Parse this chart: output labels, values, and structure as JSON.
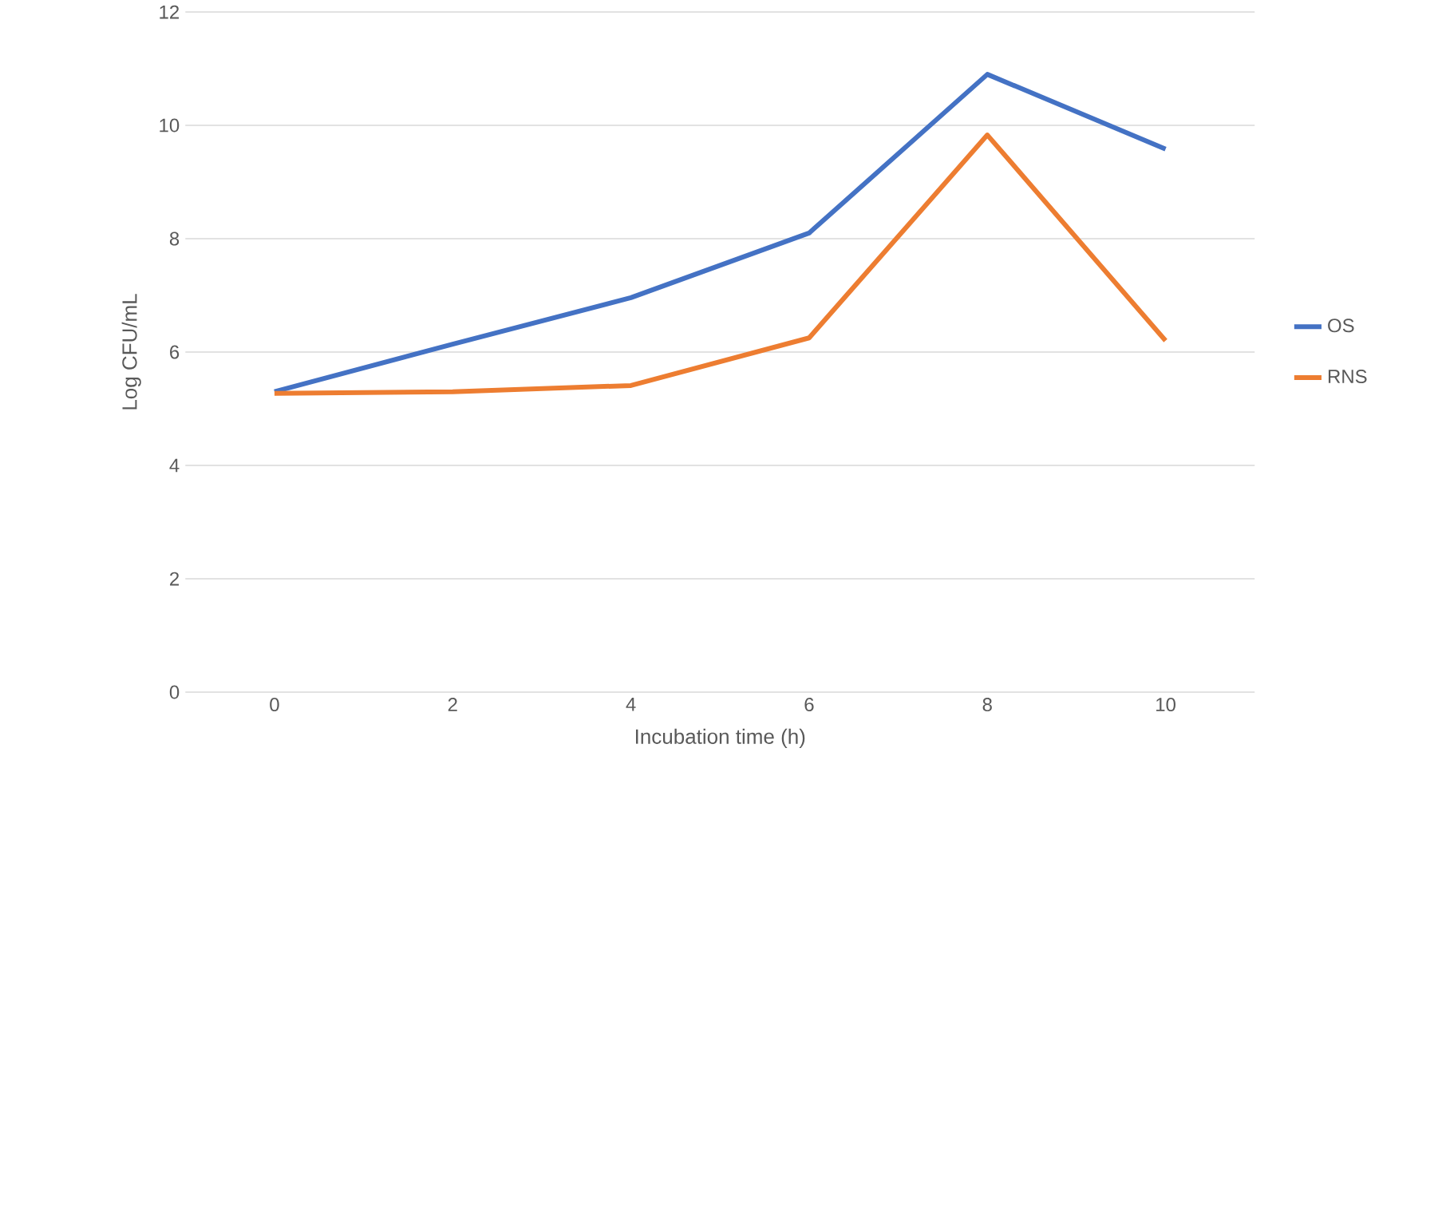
{
  "chart_data": {
    "type": "line",
    "xlabel": "Incubation time (h)",
    "ylabel": "Log CFU/mL",
    "categories": [
      "0",
      "2",
      "4",
      "6",
      "8",
      "10"
    ],
    "series": [
      {
        "name": "OS",
        "color": "#4472c4",
        "values": [
          5.3,
          6.14,
          6.96,
          8.1,
          10.9,
          9.58
        ]
      },
      {
        "name": "RNS",
        "color": "#ed7d31",
        "values": [
          5.27,
          5.3,
          5.41,
          6.25,
          9.83,
          6.2
        ]
      }
    ],
    "ylim": [
      0,
      12
    ],
    "yticks": [
      0,
      2,
      4,
      6,
      8,
      10,
      12
    ],
    "grid": "y",
    "legend": "right",
    "marker": "none",
    "line_style": "solid"
  }
}
